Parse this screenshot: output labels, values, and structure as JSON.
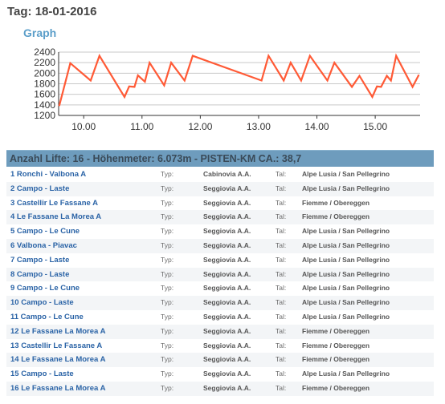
{
  "page": {
    "title": "Tag: 18-01-2016",
    "graph_heading": "Graph"
  },
  "colors": {
    "line": "#ff5a36",
    "accent": "#5b9ec9",
    "summary_bg": "#6e9cbd",
    "link": "#2a63a6"
  },
  "chart_data": {
    "type": "line",
    "title": "",
    "xlabel": "",
    "ylabel": "",
    "xlim": [
      9.57,
      15.77
    ],
    "ylim": [
      1200,
      2400
    ],
    "x_ticks": [
      10.0,
      11.0,
      12.0,
      13.0,
      14.0,
      15.0
    ],
    "x_tick_labels": [
      "10.00",
      "11.00",
      "12.00",
      "13.00",
      "14.00",
      "15.00"
    ],
    "y_ticks": [
      1200,
      1400,
      1600,
      1800,
      2000,
      2200,
      2400
    ],
    "y_tick_labels": [
      "1200",
      "1400",
      "1600",
      "1800",
      "2000",
      "2200",
      "2400"
    ],
    "grid": true,
    "series": [
      {
        "x": [
          9.58,
          9.77,
          10.12,
          10.27,
          10.7,
          10.78,
          10.87,
          10.93,
          11.05,
          11.13,
          11.38,
          11.5,
          11.73,
          11.87,
          13.05,
          13.17,
          13.43,
          13.55,
          13.73,
          13.88,
          14.18,
          14.3,
          14.6,
          14.73,
          14.95,
          15.03,
          15.1,
          15.2,
          15.27,
          15.36,
          15.64,
          15.75
        ],
        "y": [
          1380,
          2190,
          1860,
          2330,
          1550,
          1750,
          1740,
          1960,
          1840,
          2200,
          1770,
          2200,
          1860,
          2330,
          1860,
          2330,
          1860,
          2200,
          1860,
          2330,
          1860,
          2200,
          1740,
          1950,
          1550,
          1750,
          1740,
          1950,
          1860,
          2330,
          1740,
          1970
        ]
      }
    ]
  },
  "summary": "Anzahl Lifte: 16 - Höhenmeter: 6.073m - PISTEN-KM CA.: 38,7",
  "table": {
    "typ_label": "Typ:",
    "tal_label": "Tal:",
    "rows": [
      {
        "name": "1 Ronchi - Valbona A",
        "typ": "Cabinovia A.A.",
        "tal": "Alpe Lusia / San Pellegrino"
      },
      {
        "name": "2 Campo - Laste",
        "typ": "Seggiovia A.A.",
        "tal": "Alpe Lusia / San Pellegrino"
      },
      {
        "name": "3 Castellir Le Fassane A",
        "typ": "Seggiovia A.A.",
        "tal": "Fiemme / Obereggen"
      },
      {
        "name": "4 Le Fassane La Morea A",
        "typ": "Seggiovia A.A.",
        "tal": "Fiemme / Obereggen"
      },
      {
        "name": "5 Campo - Le Cune",
        "typ": "Seggiovia A.A.",
        "tal": "Alpe Lusia / San Pellegrino"
      },
      {
        "name": "6 Valbona - Piavac",
        "typ": "Seggiovia A.A.",
        "tal": "Alpe Lusia / San Pellegrino"
      },
      {
        "name": "7 Campo - Laste",
        "typ": "Seggiovia A.A.",
        "tal": "Alpe Lusia / San Pellegrino"
      },
      {
        "name": "8 Campo - Laste",
        "typ": "Seggiovia A.A.",
        "tal": "Alpe Lusia / San Pellegrino"
      },
      {
        "name": "9 Campo - Le Cune",
        "typ": "Seggiovia A.A.",
        "tal": "Alpe Lusia / San Pellegrino"
      },
      {
        "name": "10 Campo - Laste",
        "typ": "Seggiovia A.A.",
        "tal": "Alpe Lusia / San Pellegrino"
      },
      {
        "name": "11 Campo - Le Cune",
        "typ": "Seggiovia A.A.",
        "tal": "Alpe Lusia / San Pellegrino"
      },
      {
        "name": "12 Le Fassane La Morea A",
        "typ": "Seggiovia A.A.",
        "tal": "Fiemme / Obereggen"
      },
      {
        "name": "13 Castellir Le Fassane A",
        "typ": "Seggiovia A.A.",
        "tal": "Fiemme / Obereggen"
      },
      {
        "name": "14 Le Fassane La Morea A",
        "typ": "Seggiovia A.A.",
        "tal": "Fiemme / Obereggen"
      },
      {
        "name": "15 Campo - Laste",
        "typ": "Seggiovia A.A.",
        "tal": "Alpe Lusia / San Pellegrino"
      },
      {
        "name": "16 Le Fassane La Morea A",
        "typ": "Seggiovia A.A.",
        "tal": "Fiemme / Obereggen"
      }
    ]
  }
}
